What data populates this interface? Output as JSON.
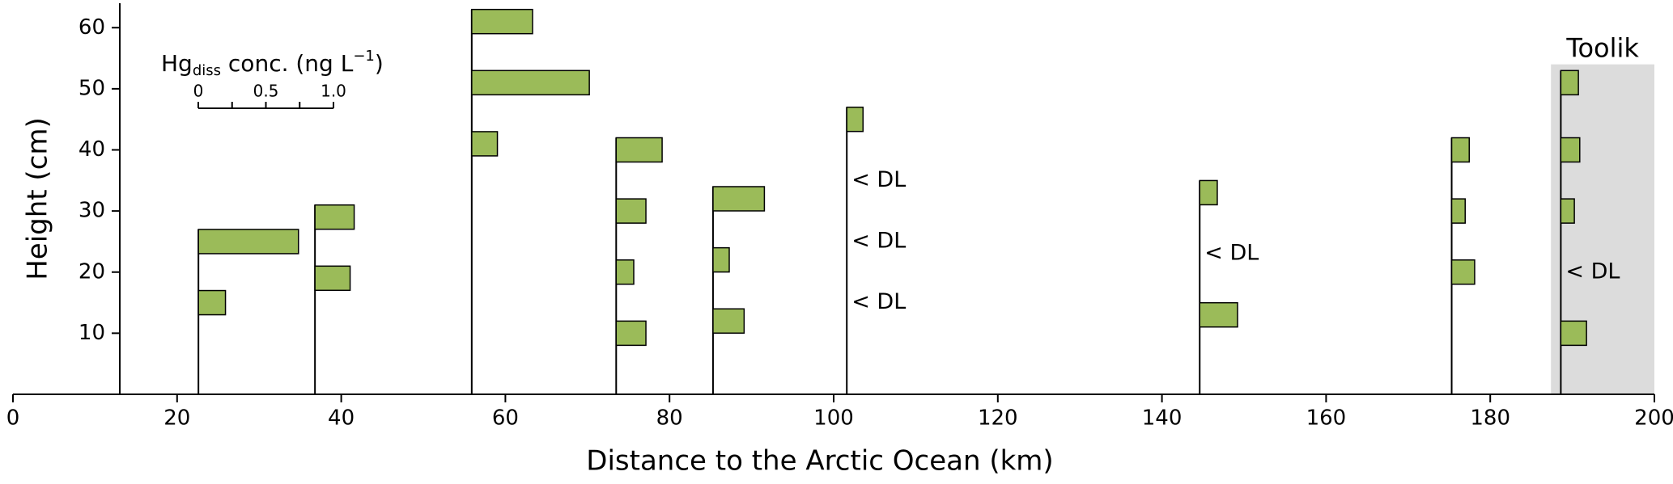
{
  "chart_data": {
    "type": "profile",
    "xlabel": "Distance to the Arctic Ocean (km)",
    "ylabel": "Height (cm)",
    "xlim": [
      0,
      200
    ],
    "xticks": [
      0,
      20,
      40,
      60,
      80,
      100,
      120,
      140,
      160,
      180,
      200
    ],
    "ylim": [
      0,
      64
    ],
    "yticks": [
      10,
      20,
      30,
      40,
      50,
      60
    ],
    "color": "#9bbb59",
    "scale_title": [
      "Hg",
      "diss",
      " conc. (ng L",
      "−1",
      ")"
    ],
    "scale_ticks": [
      0,
      0.5,
      {
        "value": 1,
        "label": "1.0"
      }
    ],
    "scale_minor_ticks": [
      0.25,
      0.75
    ],
    "dl_label": "< DL",
    "region": {
      "label": "Toolik",
      "xlim": [
        187.4,
        200
      ],
      "top": 54
    },
    "sites": [
      {
        "x": 22.6,
        "bars": [
          {
            "height": 25,
            "value": 0.74
          },
          {
            "height": 15,
            "value": 0.2
          }
        ],
        "dl": []
      },
      {
        "x": 36.8,
        "bars": [
          {
            "height": 29,
            "value": 0.29
          },
          {
            "height": 19,
            "value": 0.26
          }
        ],
        "dl": []
      },
      {
        "x": 55.9,
        "bars": [
          {
            "height": 61,
            "value": 0.45
          },
          {
            "height": 51,
            "value": 0.87
          },
          {
            "height": 41,
            "value": 0.19
          }
        ],
        "dl": []
      },
      {
        "x": 73.5,
        "bars": [
          {
            "height": 40,
            "value": 0.34
          },
          {
            "height": 30,
            "value": 0.22
          },
          {
            "height": 20,
            "value": 0.13
          },
          {
            "height": 10,
            "value": 0.22
          }
        ],
        "dl": []
      },
      {
        "x": 85.3,
        "bars": [
          {
            "height": 32,
            "value": 0.38
          },
          {
            "height": 22,
            "value": 0.12
          },
          {
            "height": 12,
            "value": 0.23
          }
        ],
        "dl": []
      },
      {
        "x": 101.6,
        "bars": [
          {
            "height": 45,
            "value": 0.12
          }
        ],
        "dl": [
          35,
          25,
          15
        ]
      },
      {
        "x": 144.6,
        "bars": [
          {
            "height": 33,
            "value": 0.13
          },
          {
            "height": 13,
            "value": 0.28
          }
        ],
        "dl": [
          23
        ]
      },
      {
        "x": 175.3,
        "bars": [
          {
            "height": 40,
            "value": 0.13
          },
          {
            "height": 30,
            "value": 0.1
          },
          {
            "height": 20,
            "value": 0.17
          }
        ],
        "dl": []
      },
      {
        "x": 188.6,
        "bars": [
          {
            "height": 51,
            "value": 0.13
          },
          {
            "height": 40,
            "value": 0.14
          },
          {
            "height": 30,
            "value": 0.1
          },
          {
            "height": 10,
            "value": 0.19
          }
        ],
        "dl": [
          20
        ]
      }
    ]
  }
}
